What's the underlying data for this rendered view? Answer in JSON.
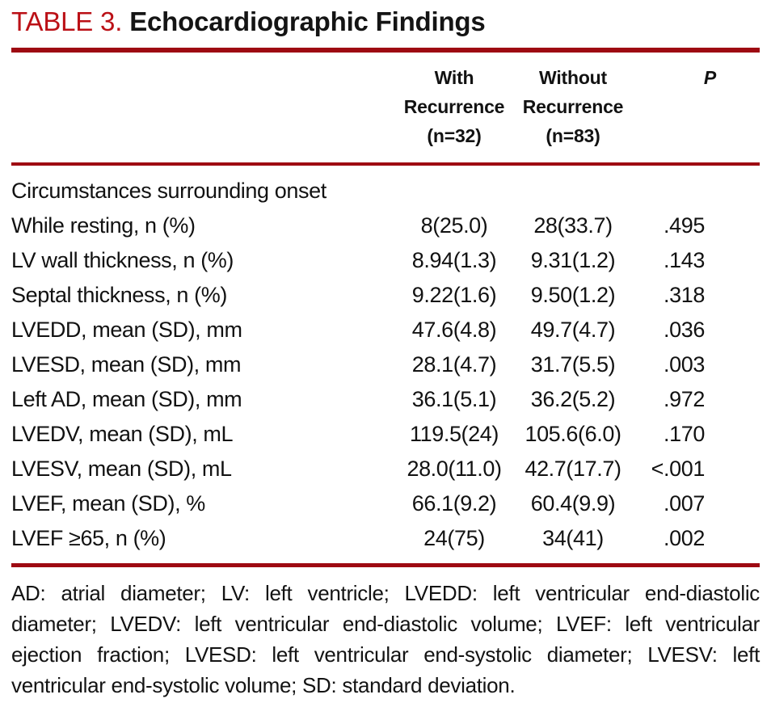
{
  "title": {
    "label": "TABLE 3.",
    "text": "Echocardiographic Findings"
  },
  "table": {
    "columns": {
      "stub": "",
      "with_recurrence": "With\nRecurrence\n(n=32)",
      "without_recurrence": "Without\nRecurrence\n(n=83)",
      "p": "P"
    },
    "section_header": "Circumstances surrounding onset",
    "rows": [
      {
        "label": "While resting, n (%)",
        "with_recurrence": "8(25.0)",
        "without_recurrence": "28(33.7)",
        "p": ".495"
      },
      {
        "label": "LV wall thickness, n (%)",
        "with_recurrence": "8.94(1.3)",
        "without_recurrence": "9.31(1.2)",
        "p": ".143"
      },
      {
        "label": "Septal thickness, n (%)",
        "with_recurrence": "9.22(1.6)",
        "without_recurrence": "9.50(1.2)",
        "p": ".318"
      },
      {
        "label": "LVEDD, mean (SD), mm",
        "with_recurrence": "47.6(4.8)",
        "without_recurrence": "49.7(4.7)",
        "p": ".036"
      },
      {
        "label": "LVESD, mean (SD), mm",
        "with_recurrence": "28.1(4.7)",
        "without_recurrence": "31.7(5.5)",
        "p": ".003"
      },
      {
        "label": "Left AD, mean (SD), mm",
        "with_recurrence": "36.1(5.1)",
        "without_recurrence": "36.2(5.2)",
        "p": ".972"
      },
      {
        "label": "LVEDV, mean (SD), mL",
        "with_recurrence": "119.5(24)",
        "without_recurrence": "105.6(6.0)",
        "p": ".170"
      },
      {
        "label": "LVESV, mean (SD), mL",
        "with_recurrence": "28.0(11.0)",
        "without_recurrence": "42.7(17.7)",
        "p": "<.001"
      },
      {
        "label": "LVEF, mean (SD), %",
        "with_recurrence": "66.1(9.2)",
        "without_recurrence": "60.4(9.9)",
        "p": ".007"
      },
      {
        "label": "LVEF ≥65, n (%)",
        "with_recurrence": "24(75)",
        "without_recurrence": "34(41)",
        "p": ".002"
      }
    ]
  },
  "footnote": "AD: atrial diameter; LV: left ventricle; LVEDD: left ventricular end-diastolic diameter; LVEDV: left ventricular end-diastolic volume; LVEF: left ventricular ejection fraction; LVESD: left ventricular end-systolic diameter; LVESV: left ventricular end-systolic volume; SD: standard deviation.",
  "colors": {
    "accent_red_title": "#bb1016",
    "rule_red": "#9e0a12",
    "text": "#121212"
  }
}
